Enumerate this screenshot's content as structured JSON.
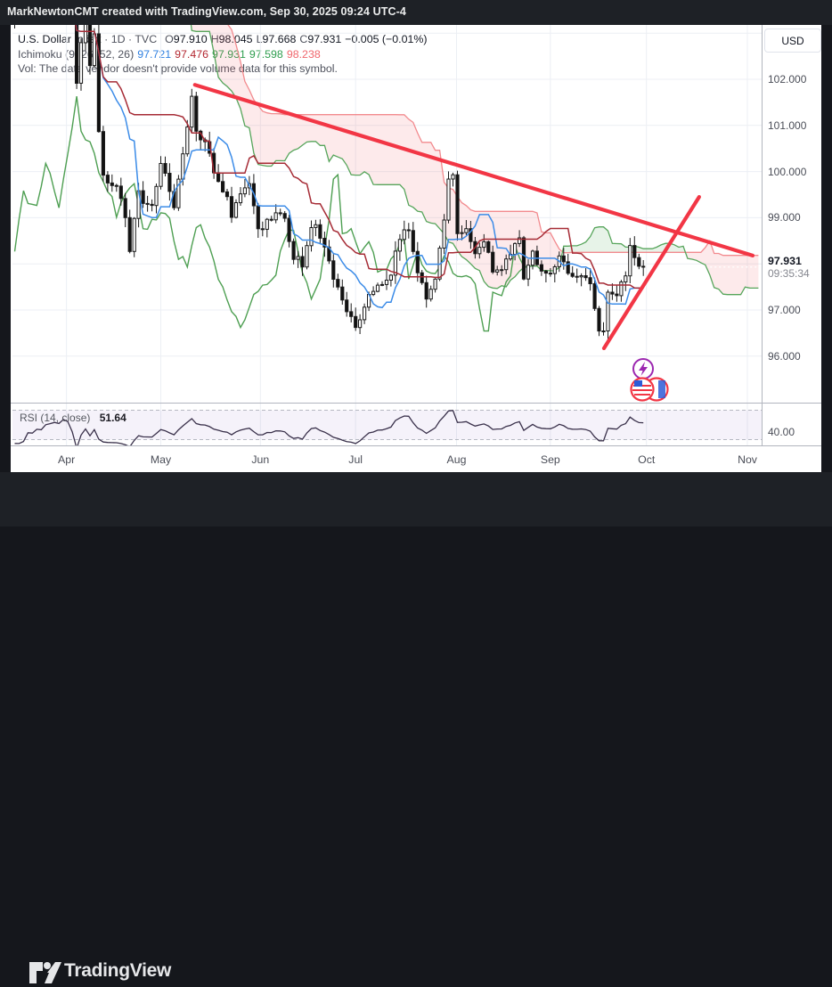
{
  "attribution": "MarkNewtonCMT created with TradingView.com, Sep 30, 2025 09:24 UTC-4",
  "legend": {
    "symbol": "U.S. Dollar Index",
    "separator": "·",
    "interval": "1D",
    "exchange": "TVC",
    "ohlc": [
      {
        "k": "O",
        "v": "97.910"
      },
      {
        "k": "H",
        "v": "98.045"
      },
      {
        "k": "L",
        "v": "97.668"
      },
      {
        "k": "C",
        "v": "97.931"
      }
    ],
    "change": "−0.005 (−0.01%)",
    "ichimoku": {
      "title": "Ichimoku",
      "params": "(9, 26, 52, 26)",
      "values": [
        {
          "v": "97.721",
          "color": "#2e7fe0"
        },
        {
          "v": "97.476",
          "color": "#b32730"
        },
        {
          "v": "97.931",
          "color": "#2f9e4f"
        },
        {
          "v": "97.598",
          "color": "#2f9e4f"
        },
        {
          "v": "98.238",
          "color": "#f0676d"
        }
      ]
    },
    "vol_message": "Vol: The data vendor doesn't provide volume data for this symbol."
  },
  "rsi_legend": {
    "title": "RSI",
    "params": "(14, close)",
    "value": "51.64"
  },
  "price_axis": {
    "currency": "USD",
    "ticks": [
      {
        "label": "102.000",
        "price": 102
      },
      {
        "label": "101.000",
        "price": 101
      },
      {
        "label": "100.000",
        "price": 100
      },
      {
        "label": "99.000",
        "price": 99
      },
      {
        "label": "97.000",
        "price": 97
      },
      {
        "label": "96.000",
        "price": 96
      }
    ],
    "last": {
      "label": "97.931",
      "countdown": "09:35:34",
      "price": 97.931
    }
  },
  "time_axis": {
    "months": [
      {
        "label": "Apr",
        "d": 11.7
      },
      {
        "label": "May",
        "d": 33.0
      },
      {
        "label": "Jun",
        "d": 55.5
      },
      {
        "label": "Jul",
        "d": 77.0
      },
      {
        "label": "Aug",
        "d": 99.8
      },
      {
        "label": "Sep",
        "d": 121.0
      },
      {
        "label": "Oct",
        "d": 142.7
      },
      {
        "label": "Nov",
        "d": 165.5
      }
    ]
  },
  "rsi_axis": {
    "tick": {
      "label": "40.00",
      "value": 40
    },
    "upper_band": 70,
    "lower_band": 30
  },
  "footer": {
    "wordmark": "TradingView"
  },
  "chart_data": {
    "type": "candlestick",
    "title": "U.S. Dollar Index, 1D, TVC — with Ichimoku Cloud (9, 26, 52, 26) and RSI (14, close)",
    "ylim": [
      94.9,
      103.2
    ],
    "y_gridlines": [
      96,
      97,
      98,
      99,
      100,
      101,
      102,
      103
    ],
    "last_close": 97.931,
    "ichimoku_params": {
      "conversion": 9,
      "base": 26,
      "lagging": 26,
      "lead_b": 52,
      "displacement": 26
    },
    "rsi_period": 14,
    "price_anchors": [
      [
        -43,
        108.0
      ],
      [
        -36,
        107.2
      ],
      [
        -29,
        106.5
      ],
      [
        -22,
        104.3
      ],
      [
        -15,
        103.9
      ],
      [
        -8,
        103.5
      ],
      [
        -3,
        103.2
      ],
      [
        0,
        103.4
      ],
      [
        4,
        103.8
      ],
      [
        8,
        104.1
      ],
      [
        12,
        104.2
      ],
      [
        13,
        103.8
      ],
      [
        14,
        102.0
      ],
      [
        15,
        102.9
      ],
      [
        16,
        103.3
      ],
      [
        17,
        102.4
      ],
      [
        18,
        103.0
      ],
      [
        19,
        100.9
      ],
      [
        20,
        99.9
      ],
      [
        22,
        99.7
      ],
      [
        24,
        99.5
      ],
      [
        26,
        98.35
      ],
      [
        28,
        99.6
      ],
      [
        29,
        99.3
      ],
      [
        31,
        99.2
      ],
      [
        33,
        100.1
      ],
      [
        35,
        99.6
      ],
      [
        36,
        99.3
      ],
      [
        38,
        100.3
      ],
      [
        40,
        101.7
      ],
      [
        41,
        100.9
      ],
      [
        43,
        100.65
      ],
      [
        45,
        100.0
      ],
      [
        47,
        99.6
      ],
      [
        49,
        99.1
      ],
      [
        51,
        99.55
      ],
      [
        53,
        99.8
      ],
      [
        55,
        98.75
      ],
      [
        57,
        98.9
      ],
      [
        59,
        99.15
      ],
      [
        61,
        99.0
      ],
      [
        63,
        98.2
      ],
      [
        65,
        98.0
      ],
      [
        67,
        98.8
      ],
      [
        68,
        98.9
      ],
      [
        70,
        98.4
      ],
      [
        72,
        97.7
      ],
      [
        74,
        97.2
      ],
      [
        76,
        96.85
      ],
      [
        77,
        96.6
      ],
      [
        79,
        97.1
      ],
      [
        81,
        97.45
      ],
      [
        83,
        97.55
      ],
      [
        85,
        97.85
      ],
      [
        87,
        98.55
      ],
      [
        89,
        98.75
      ],
      [
        91,
        97.85
      ],
      [
        93,
        97.25
      ],
      [
        95,
        97.65
      ],
      [
        97,
        98.85
      ],
      [
        98,
        99.75
      ],
      [
        99,
        99.95
      ],
      [
        100,
        98.65
      ],
      [
        102,
        98.75
      ],
      [
        104,
        98.2
      ],
      [
        106,
        98.5
      ],
      [
        108,
        97.85
      ],
      [
        110,
        97.85
      ],
      [
        112,
        98.15
      ],
      [
        114,
        98.6
      ],
      [
        115,
        97.75
      ],
      [
        117,
        98.25
      ],
      [
        119,
        97.9
      ],
      [
        121,
        97.75
      ],
      [
        123,
        98.15
      ],
      [
        125,
        97.75
      ],
      [
        127,
        97.8
      ],
      [
        128,
        97.75
      ],
      [
        130,
        97.55
      ],
      [
        132,
        96.6
      ],
      [
        133,
        96.5
      ],
      [
        134,
        97.35
      ],
      [
        136,
        97.35
      ],
      [
        138,
        97.85
      ],
      [
        139,
        98.45
      ],
      [
        140,
        98.15
      ],
      [
        141,
        97.95
      ],
      [
        142,
        97.931
      ]
    ],
    "trend_lines": [
      {
        "d1": 40.7,
        "p1": 101.88,
        "d2": 166.7,
        "p2": 98.18
      },
      {
        "d1": 133.1,
        "p1": 96.17,
        "d2": 154.6,
        "p2": 99.45
      }
    ]
  },
  "colors": {
    "up_body": "#ffffff",
    "down_body": "#111111",
    "candle_border": "#1a1a1a",
    "tenkan": "#3c8ce8",
    "kijun": "#a62b35",
    "chikou": "#4e9f52",
    "span_a": "#57a55b",
    "span_b": "#f28a8e",
    "cloud_bear": "rgba(242,90,100,0.13)",
    "cloud_bull": "rgba(103,183,110,0.16)",
    "trend": "#f23645",
    "rsi_line": "#39304a",
    "rsi_band": "rgba(126,87,194,0.08)",
    "grid": "#eceff4",
    "axis_border": "#b2b5be",
    "purple_icon": "#9c27b0",
    "flag_red": "#f23645",
    "flag_blue": "#2e5bd7"
  }
}
